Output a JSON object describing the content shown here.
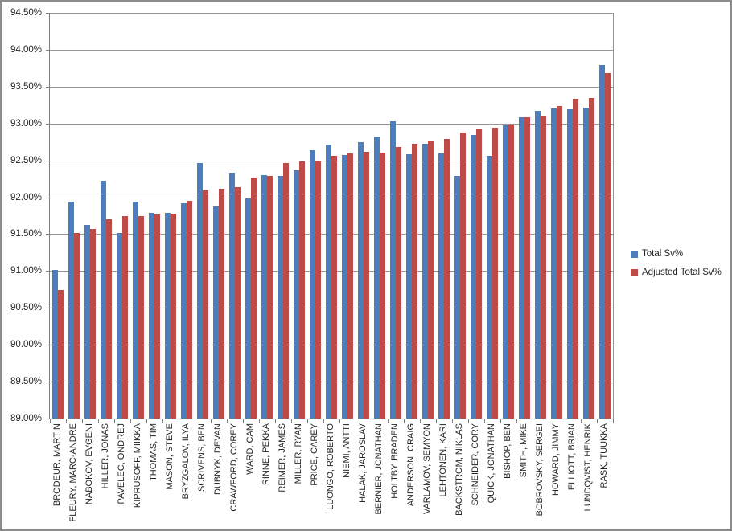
{
  "colors": {
    "series_total": "#4C7EBB",
    "series_adjusted": "#BE4B48",
    "gridline": "#969696",
    "axis": "#7F7F7F",
    "text": "#262626",
    "border": "#8C8C8C",
    "background": "#FFFFFF"
  },
  "legend": {
    "items": [
      {
        "label": "Total Sv%",
        "color": "#4C7EBB"
      },
      {
        "label": "Adjusted Total Sv%",
        "color": "#BE4B48"
      }
    ]
  },
  "chart_data": {
    "type": "bar",
    "title": "",
    "xlabel": "",
    "ylabel": "",
    "ylim": [
      89.0,
      94.5
    ],
    "y_tick_step": 0.5,
    "y_ticks": [
      "89.00%",
      "89.50%",
      "90.00%",
      "90.50%",
      "91.00%",
      "91.50%",
      "92.00%",
      "92.50%",
      "93.00%",
      "93.50%",
      "94.00%",
      "94.50%"
    ],
    "grid": true,
    "legend_position": "right",
    "categories": [
      "BRODEUR, MARTIN",
      "FLEURY, MARC-ANDRE",
      "NABOKOV, EVGENI",
      "HILLER, JONAS",
      "PAVELEC, ONDREJ",
      "KIPRUSOFF, MIIKKA",
      "THOMAS, TIM",
      "MASON, STEVE",
      "BRYZGALOV, ILYA",
      "SCRIVENS, BEN",
      "DUBNYK, DEVAN",
      "CRAWFORD, COREY",
      "WARD, CAM",
      "RINNE, PEKKA",
      "REIMER, JAMES",
      "MILLER, RYAN",
      "PRICE, CAREY",
      "LUONGO, ROBERTO",
      "NIEMI, ANTTI",
      "HALAK, JAROSLAV",
      "BERNIER, JONATHAN",
      "HOLTBY, BRADEN",
      "ANDERSON, CRAIG",
      "VARLAMOV, SEMYON",
      "LEHTONEN, KARI",
      "BACKSTROM, NIKLAS",
      "SCHNEIDER, CORY",
      "QUICK, JONATHAN",
      "BISHOP, BEN",
      "SMITH, MIKE",
      "BOBROVSKY, SERGEI",
      "HOWARD, JIMMY",
      "ELLIOTT, BRIAN",
      "LUNDQVIST, HENRIK",
      "RASK, TUUKKA"
    ],
    "series": [
      {
        "name": "Total Sv%",
        "color": "#4C7EBB",
        "values": [
          91.02,
          91.94,
          91.63,
          92.22,
          91.52,
          91.94,
          91.79,
          91.79,
          91.92,
          92.46,
          91.87,
          92.33,
          91.98,
          92.3,
          92.29,
          92.36,
          92.64,
          92.71,
          92.57,
          92.75,
          92.82,
          93.03,
          92.58,
          92.73,
          92.59,
          92.29,
          92.84,
          92.56,
          92.98,
          93.08,
          93.17,
          93.2,
          93.19,
          93.21,
          93.79
        ]
      },
      {
        "name": "Adjusted Total Sv%",
        "color": "#BE4B48",
        "values": [
          90.74,
          91.52,
          91.57,
          91.7,
          91.74,
          91.75,
          91.77,
          91.78,
          91.95,
          92.09,
          92.11,
          92.14,
          92.27,
          92.29,
          92.46,
          92.48,
          92.5,
          92.56,
          92.59,
          92.62,
          92.61,
          92.68,
          92.73,
          92.76,
          92.79,
          92.88,
          92.93,
          92.94,
          92.99,
          93.08,
          93.11,
          93.24,
          93.33,
          93.35,
          93.68
        ]
      }
    ]
  }
}
